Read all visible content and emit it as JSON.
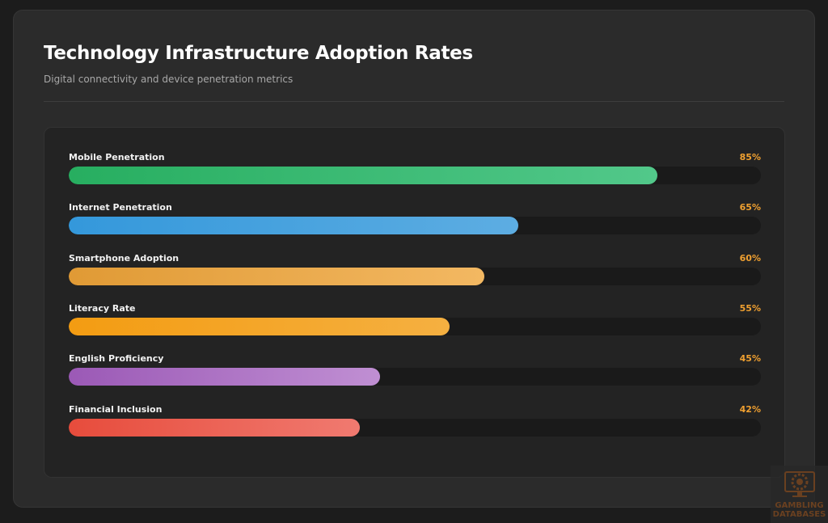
{
  "header": {
    "title": "Technology Infrastructure Adoption Rates",
    "subtitle": "Digital connectivity and device penetration metrics"
  },
  "chart_data": {
    "type": "bar",
    "orientation": "horizontal",
    "categories": [
      "Mobile Penetration",
      "Internet Penetration",
      "Smartphone Adoption",
      "Literacy Rate",
      "English Proficiency",
      "Financial Inclusion"
    ],
    "values": [
      85,
      65,
      60,
      55,
      45,
      42
    ],
    "value_labels": [
      "85%",
      "65%",
      "60%",
      "55%",
      "45%",
      "42%"
    ],
    "xlim": [
      0,
      100
    ],
    "colors": [
      [
        "#27ae60",
        "#52c88a"
      ],
      [
        "#3498db",
        "#5dade2"
      ],
      [
        "#e09a35",
        "#f3b862"
      ],
      [
        "#f39c12",
        "#f5b041"
      ],
      [
        "#9b59b6",
        "#c08fd3"
      ],
      [
        "#e74c3c",
        "#f07a70"
      ]
    ],
    "value_color": "#f0a030"
  },
  "watermark": {
    "text": "GAMBLING DATABASES"
  }
}
